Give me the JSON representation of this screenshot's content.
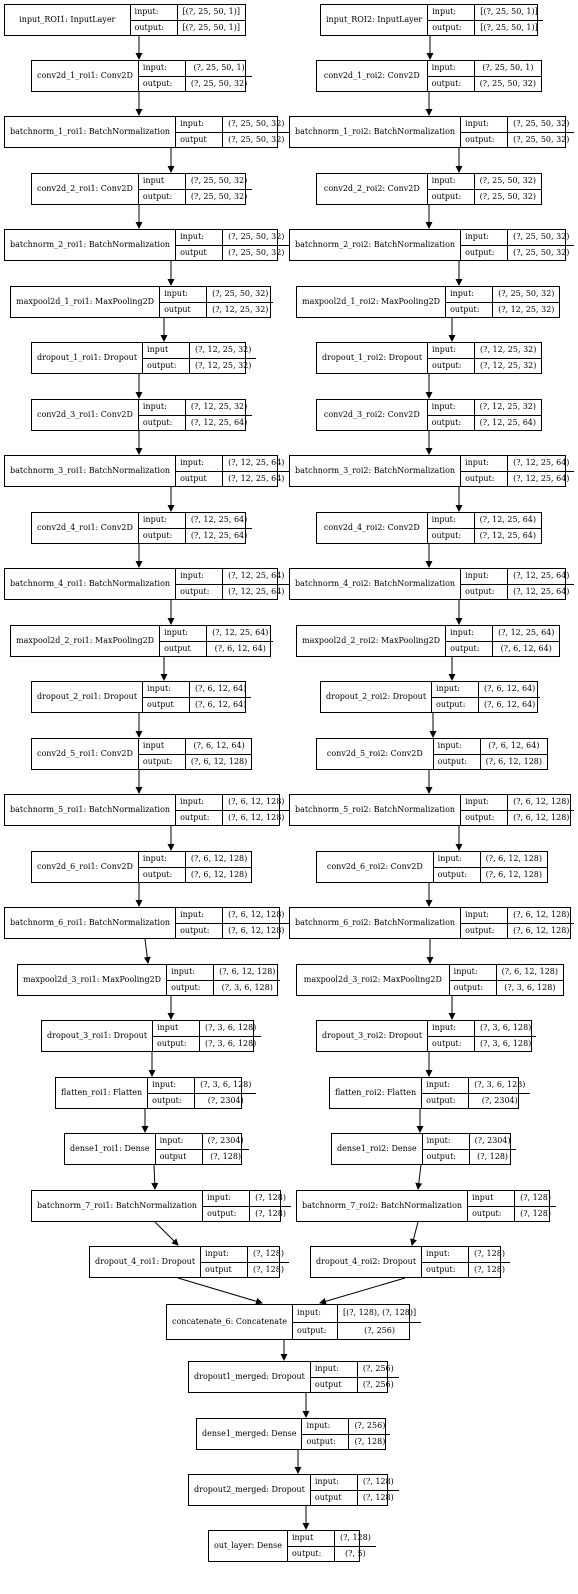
{
  "nodes": [
    {
      "id": "input_ROI1",
      "name": "input_ROI1: InputLayer",
      "in_label": "input:",
      "in": "[(?, 25, 50, 1)]",
      "out_label": "output:",
      "out": "[(?, 25, 50, 1)]"
    },
    {
      "id": "conv2d_1_roi1",
      "name": "conv2d_1_roi1: Conv2D",
      "in_label": "input:",
      "in": "(?, 25, 50, 1)",
      "out_label": "output:",
      "out": "(?, 25, 50, 32)"
    },
    {
      "id": "batchnorm_1_roi1",
      "name": "batchnorm_1_roi1: BatchNormalization",
      "in_label": "input:",
      "in": "(?, 25, 50, 32)",
      "out_label": "output",
      "out": "(?, 25, 50, 32)"
    },
    {
      "id": "conv2d_2_roi1",
      "name": "conv2d_2_roi1: Conv2D",
      "in_label": "input",
      "in": "(?, 25, 50, 32)",
      "out_label": "output:",
      "out": "(?, 25, 50, 32)"
    },
    {
      "id": "batchnorm_2_roi1",
      "name": "batchnorm_2_roi1: BatchNormalization",
      "in_label": "input:",
      "in": "(?, 25, 50, 32)",
      "out_label": "output",
      "out": "(?, 25, 50, 32)"
    },
    {
      "id": "maxpool2d_1_roi1",
      "name": "maxpool2d_1_roi1: MaxPooling2D",
      "in_label": "input:",
      "in": "(?, 25, 50, 32)",
      "out_label": "output",
      "out": "(?, 12, 25, 32)"
    },
    {
      "id": "dropout_1_roi1",
      "name": "dropout_1_roi1: Dropout",
      "in_label": "input",
      "in": "(?, 12, 25, 32)",
      "out_label": "output:",
      "out": "(?, 12, 25, 32)"
    },
    {
      "id": "conv2d_3_roi1",
      "name": "conv2d_3_roi1: Conv2D",
      "in_label": "input:",
      "in": "(?, 12, 25, 32)",
      "out_label": "output:",
      "out": "(?, 12, 25, 64)"
    },
    {
      "id": "batchnorm_3_roi1",
      "name": "batchnorm_3_roi1: BatchNormalization",
      "in_label": "input:",
      "in": "(?, 12, 25, 64)",
      "out_label": "output",
      "out": "(?, 12, 25, 64)"
    },
    {
      "id": "conv2d_4_roi1",
      "name": "conv2d_4_roi1: Conv2D",
      "in_label": "input:",
      "in": "(?, 12, 25, 64)",
      "out_label": "output:",
      "out": "(?, 12, 25, 64)"
    },
    {
      "id": "batchnorm_4_roi1",
      "name": "batchnorm_4_roi1: BatchNormalization",
      "in_label": "input:",
      "in": "(?, 12, 25, 64)",
      "out_label": "output:",
      "out": "(?, 12, 25, 64)"
    },
    {
      "id": "maxpool2d_2_roi1",
      "name": "maxpool2d_2_roi1: MaxPooling2D",
      "in_label": "input:",
      "in": "(?, 12, 25, 64)",
      "out_label": "output",
      "out": "(?, 6, 12, 64)"
    },
    {
      "id": "dropout_2_roi1",
      "name": "dropout_2_roi1: Dropout",
      "in_label": "input:",
      "in": "(?, 6, 12, 64)",
      "out_label": "output",
      "out": "(?, 6, 12, 64)"
    },
    {
      "id": "conv2d_5_roi1",
      "name": "conv2d_5_roi1: Conv2D",
      "in_label": "input",
      "in": "(?, 6, 12, 64)",
      "out_label": "output:",
      "out": "(?, 6, 12, 128)"
    },
    {
      "id": "batchnorm_5_roi1",
      "name": "batchnorm_5_roi1: BatchNormalization",
      "in_label": "input:",
      "in": "(?, 6, 12, 128)",
      "out_label": "output:",
      "out": "(?, 6, 12, 128)"
    },
    {
      "id": "conv2d_6_roi1",
      "name": "conv2d_6_roi1: Conv2D",
      "in_label": "input:",
      "in": "(?, 6, 12, 128)",
      "out_label": "output:",
      "out": "(?, 6, 12, 128)"
    },
    {
      "id": "batchnorm_6_roi1",
      "name": "batchnorm_6_roi1: BatchNormalization",
      "in_label": "input:",
      "in": "(?, 6, 12, 128)",
      "out_label": "output:",
      "out": "(?, 6, 12, 128)"
    },
    {
      "id": "maxpool2d_3_roi1",
      "name": "maxpool2d_3_roi1: MaxPooling2D",
      "in_label": "input:",
      "in": "(?, 6, 12, 128)",
      "out_label": "output:",
      "out": "(?, 3, 6, 128)"
    },
    {
      "id": "dropout_3_roi1",
      "name": "dropout_3_roi1: Dropout",
      "in_label": "input",
      "in": "(?, 3, 6, 128)",
      "out_label": "output:",
      "out": "(?, 3, 6, 128)"
    },
    {
      "id": "flatten_roi1",
      "name": "flatten_roi1: Flatten",
      "in_label": "input:",
      "in": "(?, 3, 6, 128)",
      "out_label": "output:",
      "out": "(?, 2304)"
    },
    {
      "id": "dense1_roi1",
      "name": "dense1_roi1: Dense",
      "in_label": "input:",
      "in": "(?, 2304)",
      "out_label": "output",
      "out": "(?, 128)"
    },
    {
      "id": "batchnorm_7_roi1",
      "name": "batchnorm_7_roi1: BatchNormalization",
      "in_label": "input:",
      "in": "(?, 128)",
      "out_label": "output:",
      "out": "(?, 128)"
    },
    {
      "id": "dropout_4_roi1",
      "name": "dropout_4_roi1: Dropout",
      "in_label": "input:",
      "in": "(?, 128)",
      "out_label": "output",
      "out": "(?, 128)"
    },
    {
      "id": "input_ROI2",
      "name": "input_ROI2: InputLayer",
      "in_label": "input:",
      "in": "[(?, 25, 50, 1)]",
      "out_label": "output:",
      "out": "[(?, 25, 50, 1)]"
    },
    {
      "id": "conv2d_1_roi2",
      "name": "conv2d_1_roi2: Conv2D",
      "in_label": "input:",
      "in": "(?, 25, 50, 1)",
      "out_label": "output:",
      "out": "(?, 25, 50, 32)"
    },
    {
      "id": "batchnorm_1_roi2",
      "name": "batchnorm_1_roi2: BatchNormalization",
      "in_label": "input:",
      "in": "(?, 25, 50, 32)",
      "out_label": "output:",
      "out": "(?, 25, 50, 32)"
    },
    {
      "id": "conv2d_2_roi2",
      "name": "conv2d_2_roi2: Conv2D",
      "in_label": "input:",
      "in": "(?, 25, 50, 32)",
      "out_label": "output:",
      "out": "(?, 25, 50, 32)"
    },
    {
      "id": "batchnorm_2_roi2",
      "name": "batchnorm_2_roi2: BatchNormalization",
      "in_label": "input:",
      "in": "(?, 25, 50, 32)",
      "out_label": "output:",
      "out": "(?, 25, 50, 32)"
    },
    {
      "id": "maxpool2d_1_roi2",
      "name": "maxpool2d_1_roi2: MaxPooling2D",
      "in_label": "input:",
      "in": "(?, 25, 50, 32)",
      "out_label": "output:",
      "out": "(?, 12, 25, 32)"
    },
    {
      "id": "dropout_1_roi2",
      "name": "dropout_1_roi2: Dropout",
      "in_label": "input:",
      "in": "(?, 12, 25, 32)",
      "out_label": "output:",
      "out": "(?, 12, 25, 32)"
    },
    {
      "id": "conv2d_3_roi2",
      "name": "conv2d_3_roi2: Conv2D",
      "in_label": "input:",
      "in": "(?, 12, 25, 32)",
      "out_label": "output:",
      "out": "(?, 12, 25, 64)"
    },
    {
      "id": "batchnorm_3_roi2",
      "name": "batchnorm_3_roi2: BatchNormalization",
      "in_label": "input:",
      "in": "(?, 12, 25, 64)",
      "out_label": "output:",
      "out": "(?, 12, 25, 64)"
    },
    {
      "id": "conv2d_4_roi2",
      "name": "conv2d_4_roi2: Conv2D",
      "in_label": "input:",
      "in": "(?, 12, 25, 64)",
      "out_label": "output:",
      "out": "(?, 12, 25, 64)"
    },
    {
      "id": "batchnorm_4_roi2",
      "name": "batchnorm_4_roi2: BatchNormalization",
      "in_label": "input:",
      "in": "(?, 12, 25, 64)",
      "out_label": "output:",
      "out": "(?, 12, 25, 64)"
    },
    {
      "id": "maxpool2d_2_roi2",
      "name": "maxpool2d_2_roi2: MaxPooling2D",
      "in_label": "input:",
      "in": "(?, 12, 25, 64)",
      "out_label": "output:",
      "out": "(?, 6, 12, 64)"
    },
    {
      "id": "dropout_2_roi2",
      "name": "dropout_2_roi2: Dropout",
      "in_label": "input:",
      "in": "(?, 6, 12, 64)",
      "out_label": "output:",
      "out": "(?, 6, 12, 64)"
    },
    {
      "id": "conv2d_5_roi2",
      "name": "conv2d_5_roi2: Conv2D",
      "in_label": "input:",
      "in": "(?, 6, 12, 64)",
      "out_label": "output:",
      "out": "(?, 6, 12, 128)"
    },
    {
      "id": "batchnorm_5_roi2",
      "name": "batchnorm_5_roi2: BatchNormalization",
      "in_label": "input:",
      "in": "(?, 6, 12, 128)",
      "out_label": "output:",
      "out": "(?, 6, 12, 128)"
    },
    {
      "id": "conv2d_6_roi2",
      "name": "conv2d_6_roi2: Conv2D",
      "in_label": "input:",
      "in": "(?, 6, 12, 128)",
      "out_label": "output:",
      "out": "(?, 6, 12, 128)"
    },
    {
      "id": "batchnorm_6_roi2",
      "name": "batchnorm_6_roi2: BatchNormalization",
      "in_label": "input:",
      "in": "(?, 6, 12, 128)",
      "out_label": "output:",
      "out": "(?, 6, 12, 128)"
    },
    {
      "id": "maxpool2d_3_roi2",
      "name": "maxpool2d_3_roi2: MaxPooling2D",
      "in_label": "input:",
      "in": "(?, 6, 12, 128)",
      "out_label": "output:",
      "out": "(?, 3, 6, 128)"
    },
    {
      "id": "dropout_3_roi2",
      "name": "dropout_3_roi2: Dropout",
      "in_label": "input:",
      "in": "(?, 3, 6, 128)",
      "out_label": "output:",
      "out": "(?, 3, 6, 128)"
    },
    {
      "id": "flatten_roi2",
      "name": "flatten_roi2: Flatten",
      "in_label": "input:",
      "in": "(?, 3, 6, 128)",
      "out_label": "output:",
      "out": "(?, 2304)"
    },
    {
      "id": "dense1_roi2",
      "name": "dense1_roi2: Dense",
      "in_label": "input:",
      "in": "(?, 2304)",
      "out_label": "output:",
      "out": "(?, 128)"
    },
    {
      "id": "batchnorm_7_roi2",
      "name": "batchnorm_7_roi2: BatchNormalization",
      "in_label": "input",
      "in": "(?, 128)",
      "out_label": "output:",
      "out": "(?, 128)"
    },
    {
      "id": "dropout_4_roi2",
      "name": "dropout_4_roi2: Dropout",
      "in_label": "input:",
      "in": "(?, 128)",
      "out_label": "output:",
      "out": "(?, 128)"
    },
    {
      "id": "concatenate_6",
      "name": "concatenate_6: Concatenate",
      "in_label": "input:",
      "in": "[(?, 128), (?, 128)]",
      "out_label": "output:",
      "out": "(?, 256)"
    },
    {
      "id": "dropout1_merged",
      "name": "dropout1_merged: Dropout",
      "in_label": "input:",
      "in": "(?, 256)",
      "out_label": "output",
      "out": "(?, 256)"
    },
    {
      "id": "dense1_merged",
      "name": "dense1_merged: Dense",
      "in_label": "input:",
      "in": "(?, 256)",
      "out_label": "output:",
      "out": "(?, 128)"
    },
    {
      "id": "dropout2_merged",
      "name": "dropout2_merged: Dropout",
      "in_label": "input:",
      "in": "(?, 128)",
      "out_label": "output",
      "out": "(?, 128)"
    },
    {
      "id": "out_layer",
      "name": "out_layer: Dense",
      "in_label": "input",
      "in": "(?, 128)",
      "out_label": "output:",
      "out": "(?, 5)"
    }
  ],
  "edges": [
    [
      "input_ROI1",
      "conv2d_1_roi1"
    ],
    [
      "conv2d_1_roi1",
      "batchnorm_1_roi1"
    ],
    [
      "batchnorm_1_roi1",
      "conv2d_2_roi1"
    ],
    [
      "conv2d_2_roi1",
      "batchnorm_2_roi1"
    ],
    [
      "batchnorm_2_roi1",
      "maxpool2d_1_roi1"
    ],
    [
      "maxpool2d_1_roi1",
      "dropout_1_roi1"
    ],
    [
      "dropout_1_roi1",
      "conv2d_3_roi1"
    ],
    [
      "conv2d_3_roi1",
      "batchnorm_3_roi1"
    ],
    [
      "batchnorm_3_roi1",
      "conv2d_4_roi1"
    ],
    [
      "conv2d_4_roi1",
      "batchnorm_4_roi1"
    ],
    [
      "batchnorm_4_roi1",
      "maxpool2d_2_roi1"
    ],
    [
      "maxpool2d_2_roi1",
      "dropout_2_roi1"
    ],
    [
      "dropout_2_roi1",
      "conv2d_5_roi1"
    ],
    [
      "conv2d_5_roi1",
      "batchnorm_5_roi1"
    ],
    [
      "batchnorm_5_roi1",
      "conv2d_6_roi1"
    ],
    [
      "conv2d_6_roi1",
      "batchnorm_6_roi1"
    ],
    [
      "batchnorm_6_roi1",
      "maxpool2d_3_roi1"
    ],
    [
      "maxpool2d_3_roi1",
      "dropout_3_roi1"
    ],
    [
      "dropout_3_roi1",
      "flatten_roi1"
    ],
    [
      "flatten_roi1",
      "dense1_roi1"
    ],
    [
      "dense1_roi1",
      "batchnorm_7_roi1"
    ],
    [
      "batchnorm_7_roi1",
      "dropout_4_roi1"
    ],
    [
      "input_ROI2",
      "conv2d_1_roi2"
    ],
    [
      "conv2d_1_roi2",
      "batchnorm_1_roi2"
    ],
    [
      "batchnorm_1_roi2",
      "conv2d_2_roi2"
    ],
    [
      "conv2d_2_roi2",
      "batchnorm_2_roi2"
    ],
    [
      "batchnorm_2_roi2",
      "maxpool2d_1_roi2"
    ],
    [
      "maxpool2d_1_roi2",
      "dropout_1_roi2"
    ],
    [
      "dropout_1_roi2",
      "conv2d_3_roi2"
    ],
    [
      "conv2d_3_roi2",
      "batchnorm_3_roi2"
    ],
    [
      "batchnorm_3_roi2",
      "conv2d_4_roi2"
    ],
    [
      "conv2d_4_roi2",
      "batchnorm_4_roi2"
    ],
    [
      "batchnorm_4_roi2",
      "maxpool2d_2_roi2"
    ],
    [
      "maxpool2d_2_roi2",
      "dropout_2_roi2"
    ],
    [
      "dropout_2_roi2",
      "conv2d_5_roi2"
    ],
    [
      "conv2d_5_roi2",
      "batchnorm_5_roi2"
    ],
    [
      "batchnorm_5_roi2",
      "conv2d_6_roi2"
    ],
    [
      "conv2d_6_roi2",
      "batchnorm_6_roi2"
    ],
    [
      "batchnorm_6_roi2",
      "maxpool2d_3_roi2"
    ],
    [
      "maxpool2d_3_roi2",
      "dropout_3_roi2"
    ],
    [
      "dropout_3_roi2",
      "flatten_roi2"
    ],
    [
      "flatten_roi2",
      "dense1_roi2"
    ],
    [
      "dense1_roi2",
      "batchnorm_7_roi2"
    ],
    [
      "batchnorm_7_roi2",
      "dropout_4_roi2"
    ],
    [
      "dropout_4_roi1",
      "concatenate_6"
    ],
    [
      "dropout_4_roi2",
      "concatenate_6"
    ],
    [
      "concatenate_6",
      "dropout1_merged"
    ],
    [
      "dropout1_merged",
      "dense1_merged"
    ],
    [
      "dense1_merged",
      "dropout2_merged"
    ],
    [
      "dropout2_merged",
      "out_layer"
    ]
  ]
}
